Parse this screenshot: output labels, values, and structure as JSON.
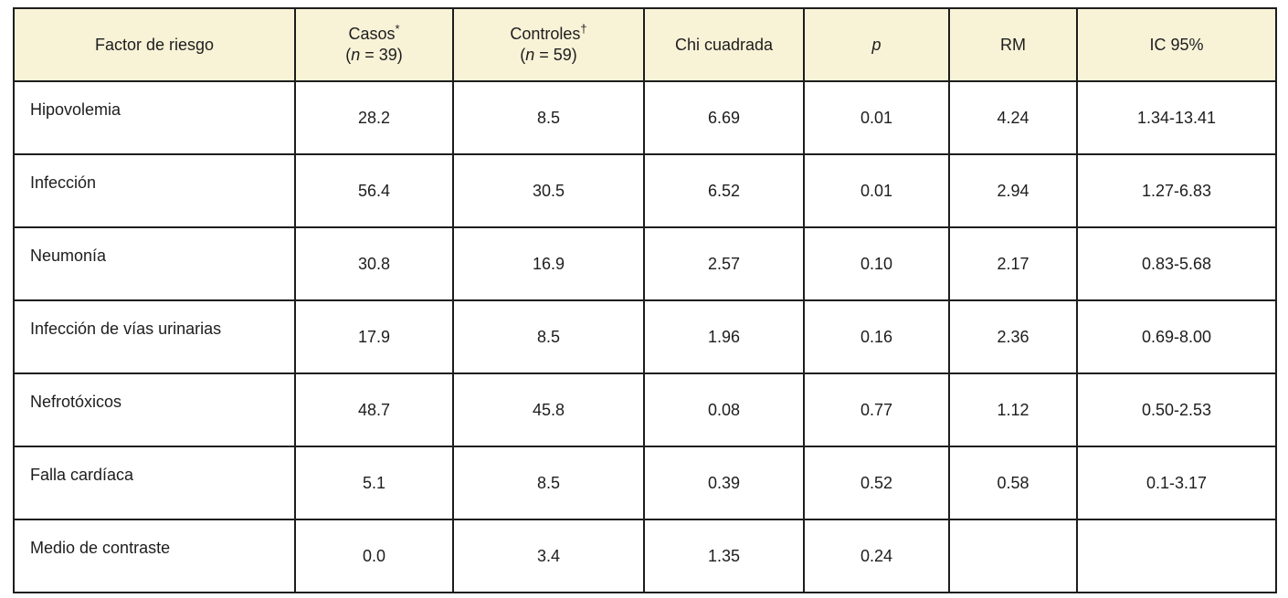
{
  "colors": {
    "header_bg": "#f8f2d7",
    "border": "#1d1d1d",
    "text": "#1d1d1d",
    "cell_bg": "#ffffff"
  },
  "table": {
    "headers": [
      {
        "title": "Factor de riesgo"
      },
      {
        "title": "Casos",
        "sup": "*",
        "sub_pre": "(",
        "sub_var": "n",
        "sub_rest": " = 39)"
      },
      {
        "title": "Controles",
        "sup": "†",
        "sub_pre": "(",
        "sub_var": "n",
        "sub_rest": " = 59)"
      },
      {
        "title": "Chi cuadrada"
      },
      {
        "title": "p"
      },
      {
        "title": "RM"
      },
      {
        "title": "IC 95%"
      }
    ],
    "rows": [
      {
        "factor": "Hipovolemia",
        "values": [
          "28.2",
          "8.5",
          "6.69",
          "0.01",
          "4.24",
          "1.34-13.41"
        ]
      },
      {
        "factor": "Infección",
        "values": [
          "56.4",
          "30.5",
          "6.52",
          "0.01",
          "2.94",
          "1.27-6.83"
        ]
      },
      {
        "factor": "Neumonía",
        "values": [
          "30.8",
          "16.9",
          "2.57",
          "0.10",
          "2.17",
          "0.83-5.68"
        ]
      },
      {
        "factor": "Infección de vías urinarias",
        "values": [
          "17.9",
          "8.5",
          "1.96",
          "0.16",
          "2.36",
          "0.69-8.00"
        ]
      },
      {
        "factor": "Nefrotóxicos",
        "values": [
          "48.7",
          "45.8",
          "0.08",
          "0.77",
          "1.12",
          "0.50-2.53"
        ]
      },
      {
        "factor": "Falla cardíaca",
        "values": [
          "5.1",
          "8.5",
          "0.39",
          "0.52",
          "0.58",
          "0.1-3.17"
        ]
      },
      {
        "factor": "Medio de contraste",
        "values": [
          "0.0",
          "3.4",
          "1.35",
          "0.24",
          "",
          ""
        ]
      }
    ]
  },
  "chart_data": {
    "type": "table",
    "columns": [
      "Factor de riesgo",
      "Casos* (n = 39)",
      "Controles† (n = 59)",
      "Chi cuadrada",
      "p",
      "RM",
      "IC 95%"
    ],
    "rows": [
      [
        "Hipovolemia",
        28.2,
        8.5,
        6.69,
        0.01,
        4.24,
        "1.34-13.41"
      ],
      [
        "Infección",
        56.4,
        30.5,
        6.52,
        0.01,
        2.94,
        "1.27-6.83"
      ],
      [
        "Neumonía",
        30.8,
        16.9,
        2.57,
        0.1,
        2.17,
        "0.83-5.68"
      ],
      [
        "Infección de vías urinarias",
        17.9,
        8.5,
        1.96,
        0.16,
        2.36,
        "0.69-8.00"
      ],
      [
        "Nefrotóxicos",
        48.7,
        45.8,
        0.08,
        0.77,
        1.12,
        "0.50-2.53"
      ],
      [
        "Falla cardíaca",
        5.1,
        8.5,
        0.39,
        0.52,
        0.58,
        "0.1-3.17"
      ],
      [
        "Medio de contraste",
        0.0,
        3.4,
        1.35,
        0.24,
        "",
        ""
      ]
    ]
  }
}
